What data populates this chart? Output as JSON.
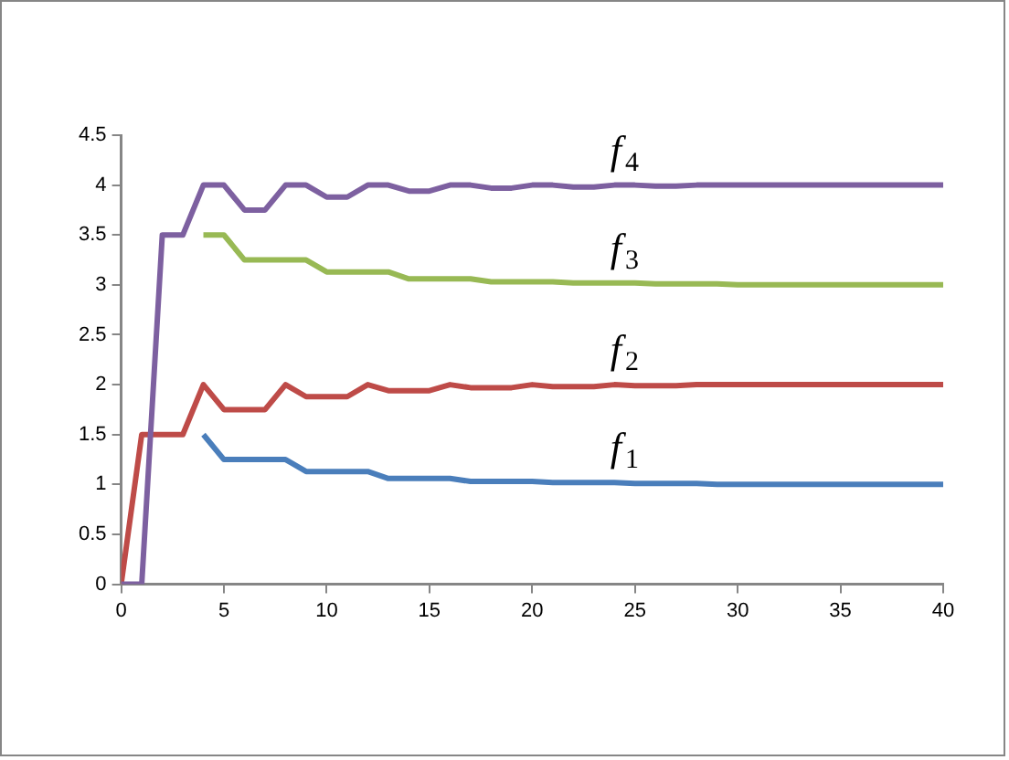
{
  "chart_data": {
    "type": "line",
    "x": [
      0,
      1,
      2,
      3,
      4,
      5,
      6,
      7,
      8,
      9,
      10,
      11,
      12,
      13,
      14,
      15,
      16,
      17,
      18,
      19,
      20,
      21,
      22,
      23,
      24,
      25,
      26,
      27,
      28,
      29,
      30,
      31,
      32,
      33,
      34,
      35,
      36,
      37,
      38,
      39,
      40
    ],
    "series": [
      {
        "name": "f$_{1}$",
        "color": "#4a7ebb",
        "values": [
          null,
          null,
          null,
          null,
          1.5,
          1.25,
          1.25,
          1.25,
          1.25,
          1.13,
          1.13,
          1.13,
          1.13,
          1.06,
          1.06,
          1.06,
          1.06,
          1.03,
          1.03,
          1.03,
          1.03,
          1.02,
          1.02,
          1.02,
          1.02,
          1.01,
          1.01,
          1.01,
          1.01,
          1,
          1,
          1,
          1,
          1,
          1,
          1,
          1,
          1,
          1,
          1,
          1
        ]
      },
      {
        "name": "f$_{2}$",
        "color": "#be4b48",
        "values": [
          0,
          1.5,
          1.5,
          1.5,
          2,
          1.75,
          1.75,
          1.75,
          2,
          1.88,
          1.88,
          1.88,
          2,
          1.94,
          1.94,
          1.94,
          2,
          1.97,
          1.97,
          1.97,
          2,
          1.98,
          1.98,
          1.98,
          2,
          1.99,
          1.99,
          1.99,
          2,
          2,
          2,
          2,
          2,
          2,
          2,
          2,
          2,
          2,
          2,
          2,
          2
        ]
      },
      {
        "name": "f$_{3}$",
        "color": "#98b954",
        "values": [
          null,
          null,
          null,
          null,
          3.5,
          3.5,
          3.25,
          3.25,
          3.25,
          3.25,
          3.13,
          3.13,
          3.13,
          3.13,
          3.06,
          3.06,
          3.06,
          3.06,
          3.03,
          3.03,
          3.03,
          3.03,
          3.02,
          3.02,
          3.02,
          3.02,
          3.01,
          3.01,
          3.01,
          3.01,
          3,
          3,
          3,
          3,
          3,
          3,
          3,
          3,
          3,
          3,
          3
        ]
      },
      {
        "name": "f$_{4}$",
        "color": "#7d60a0",
        "values": [
          0,
          0,
          3.5,
          3.5,
          4,
          4,
          3.75,
          3.75,
          4,
          4,
          3.88,
          3.88,
          4,
          4,
          3.94,
          3.94,
          4,
          4,
          3.97,
          3.97,
          4,
          4,
          3.98,
          3.98,
          4,
          4,
          3.99,
          3.99,
          4,
          4,
          4,
          4,
          4,
          4,
          4,
          4,
          4,
          4,
          4,
          4,
          4
        ]
      }
    ],
    "xlim": [
      0,
      40
    ],
    "xticks": [
      0,
      5,
      10,
      15,
      20,
      25,
      30,
      35,
      40
    ],
    "ylim": [
      0,
      4.5
    ],
    "yticks": [
      0,
      0.5,
      1,
      1.5,
      2,
      2.5,
      3,
      3.5,
      4,
      4.5
    ],
    "grid": false,
    "legend": false,
    "marker": "none",
    "line_style": "solid"
  }
}
